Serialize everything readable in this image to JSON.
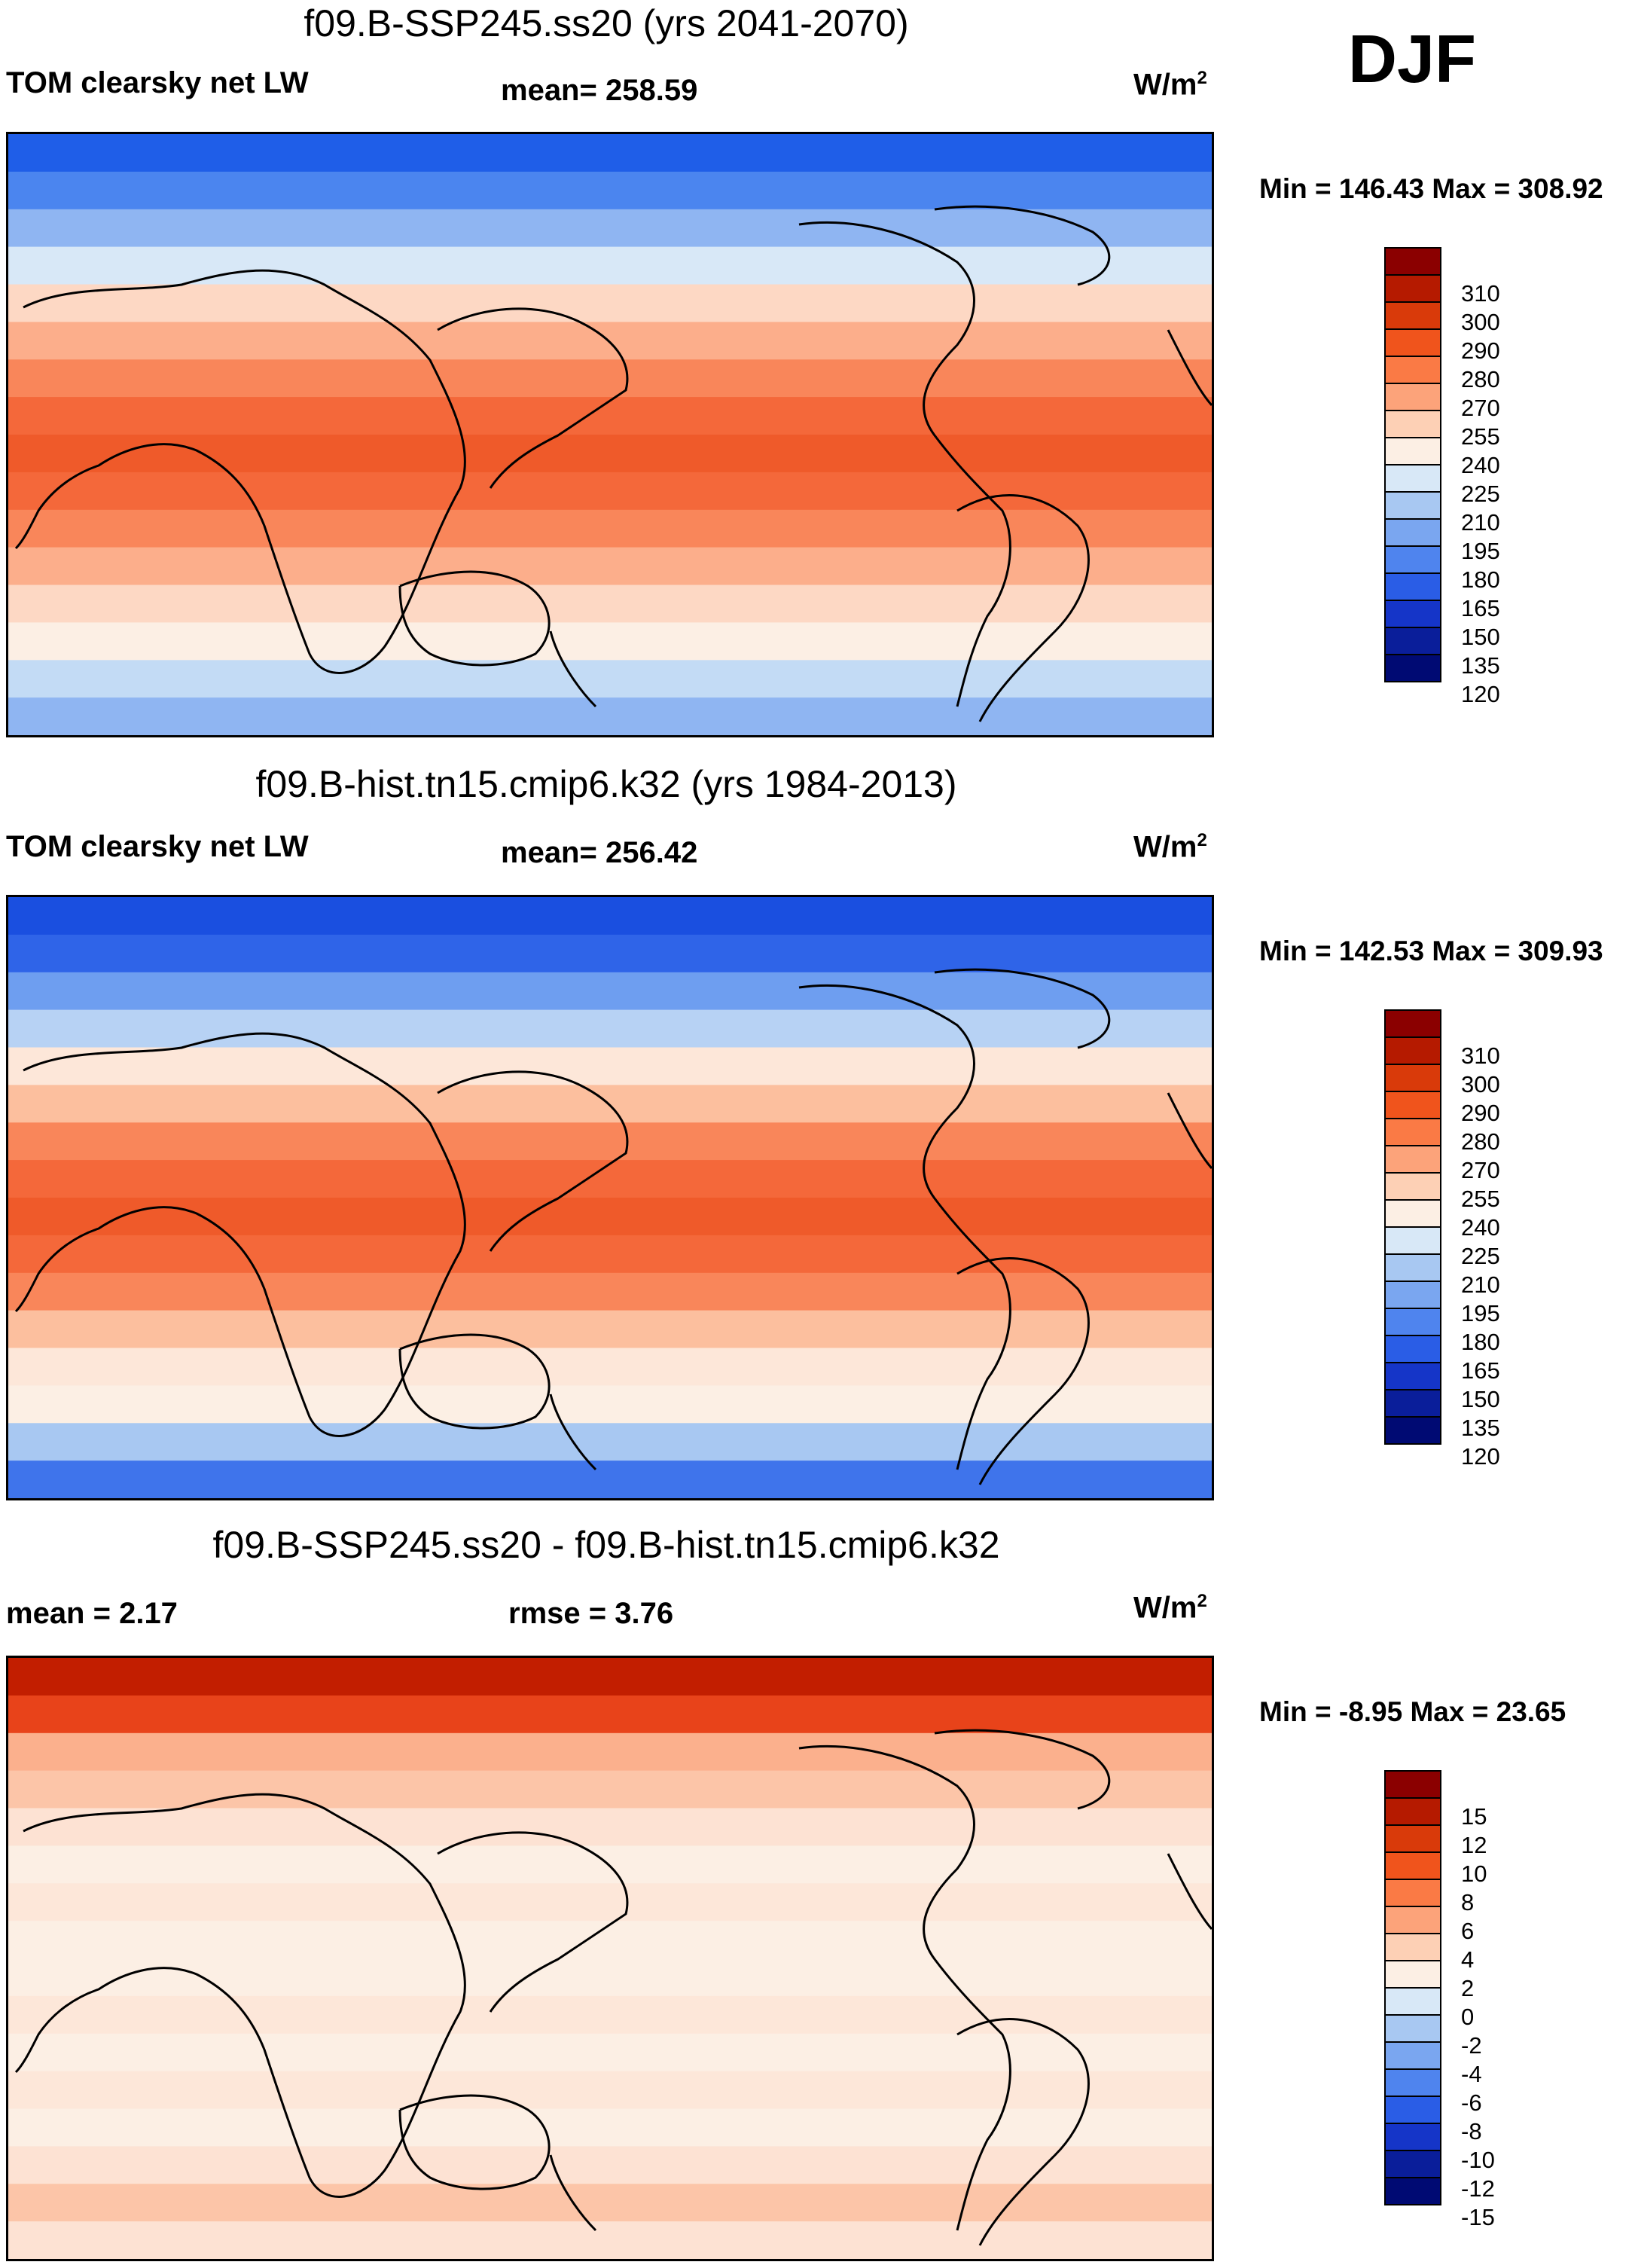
{
  "season": "DJF",
  "panels": [
    {
      "title": "f09.B-SSP245.ss20 (yrs 2041-2070)",
      "left_label": "TOM clearsky net LW",
      "center_label": "mean= 258.59",
      "units": "W/m",
      "units_exp": "2",
      "minmax": "Min = 146.43 Max = 308.92",
      "colorbar_labels": [
        "310",
        "300",
        "290",
        "280",
        "270",
        "255",
        "240",
        "225",
        "210",
        "195",
        "180",
        "165",
        "150",
        "135",
        "120"
      ],
      "colorbar_colors": [
        "#8b0000",
        "#b51a00",
        "#d93a0a",
        "#f0541c",
        "#fa7a45",
        "#fca37a",
        "#fdd0b5",
        "#fcefe4",
        "#d8e8f7",
        "#a8c8f2",
        "#7aa6f0",
        "#4f84ee",
        "#2a5de6",
        "#1535c8",
        "#0a1e9a",
        "#000a73"
      ],
      "zonal": [
        "#1f5ee8",
        "#4b85ef",
        "#8fb5f2",
        "#d8e8f7",
        "#fdd8c4",
        "#fcae8b",
        "#f9865a",
        "#f4683a",
        "#ef5a2a",
        "#f4683a",
        "#f9865a",
        "#fcae8b",
        "#fdd8c4",
        "#fcefe4",
        "#c3dbf5",
        "#8fb5f2"
      ]
    },
    {
      "title": "f09.B-hist.tn15.cmip6.k32 (yrs 1984-2013)",
      "left_label": "TOM clearsky net LW",
      "center_label": "mean= 256.42",
      "units": "W/m",
      "units_exp": "2",
      "minmax": "Min = 142.53 Max = 309.93",
      "colorbar_labels": [
        "310",
        "300",
        "290",
        "280",
        "270",
        "255",
        "240",
        "225",
        "210",
        "195",
        "180",
        "165",
        "150",
        "135",
        "120"
      ],
      "colorbar_colors": [
        "#8b0000",
        "#b51a00",
        "#d93a0a",
        "#f0541c",
        "#fa7a45",
        "#fca37a",
        "#fdd0b5",
        "#fcefe4",
        "#d8e8f7",
        "#a8c8f2",
        "#7aa6f0",
        "#4f84ee",
        "#2a5de6",
        "#1535c8",
        "#0a1e9a",
        "#000a73"
      ],
      "zonal": [
        "#1a4fe0",
        "#2f64e8",
        "#6e9ef0",
        "#b7d2f4",
        "#fde7d9",
        "#fcbf9e",
        "#f9865a",
        "#f4683a",
        "#ef5a2a",
        "#f4683a",
        "#f9865a",
        "#fcbf9e",
        "#fde7d9",
        "#fcefe4",
        "#a8c8f2",
        "#3f74eb"
      ]
    },
    {
      "title": "f09.B-SSP245.ss20 - f09.B-hist.tn15.cmip6.k32",
      "left_label": "mean =   2.17",
      "center_label": "rmse =   3.76",
      "units": "W/m",
      "units_exp": "2",
      "minmax": "Min =  -8.95 Max =  23.65",
      "colorbar_labels": [
        "15",
        "12",
        "10",
        "8",
        "6",
        "4",
        "2",
        "0",
        "-2",
        "-4",
        "-6",
        "-8",
        "-10",
        "-12",
        "-15"
      ],
      "colorbar_colors": [
        "#8b0000",
        "#b51a00",
        "#d93a0a",
        "#f0541c",
        "#fa7a45",
        "#fca37a",
        "#fdd0b5",
        "#fcefe4",
        "#d8e8f7",
        "#a8c8f2",
        "#7aa6f0",
        "#4f84ee",
        "#2a5de6",
        "#1535c8",
        "#0a1e9a",
        "#000a73"
      ],
      "zonal": [
        "#c21e00",
        "#e8431a",
        "#fbb08d",
        "#fcc5a8",
        "#fde2d3",
        "#fcefe4",
        "#fde7d9",
        "#fcefe4",
        "#fcefe4",
        "#fde7d9",
        "#fcefe4",
        "#fde7d9",
        "#fcefe4",
        "#fde2d3",
        "#fcc5a8",
        "#fde2d3"
      ]
    }
  ]
}
